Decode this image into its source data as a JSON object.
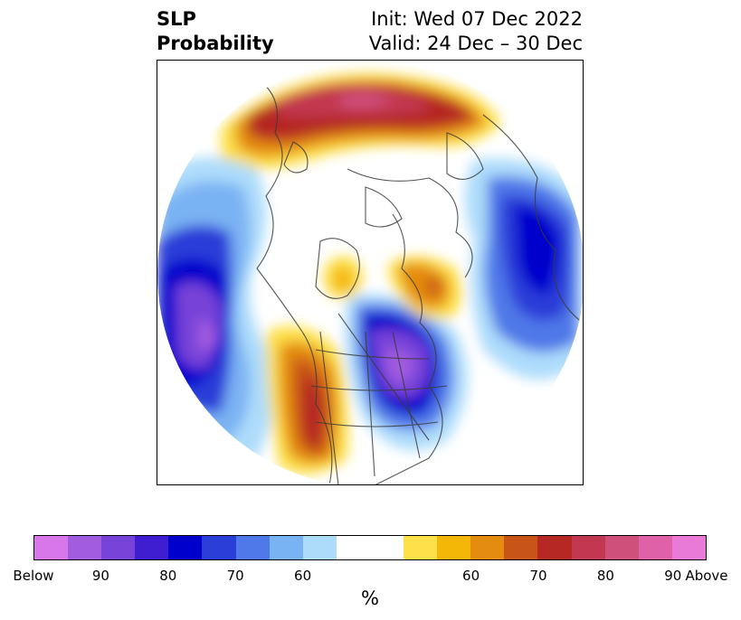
{
  "title": {
    "left_line1": "SLP",
    "left_line2": "Probability",
    "right_line1": "Init: Wed 07 Dec 2022",
    "right_line2": "Valid: 24 Dec – 30 Dec"
  },
  "colorbar": {
    "unit": "%",
    "below_colors": [
      "#d877e9",
      "#a15ce0",
      "#7743d8",
      "#3f1dd0",
      "#0000cc",
      "#2a3ed8",
      "#4f78e8",
      "#7ab3f3",
      "#addcfb"
    ],
    "neutral_color": "#ffffff",
    "above_colors": [
      "#fde04a",
      "#f4b708",
      "#e48c10",
      "#c85418",
      "#b52824",
      "#c23850",
      "#d0507c",
      "#df62a8",
      "#ea7ad8"
    ],
    "tick_labels": [
      {
        "text": "Below"
      },
      {
        "text": "90"
      },
      {
        "text": "80"
      },
      {
        "text": "70"
      },
      {
        "text": "60"
      },
      {
        "text": "60"
      },
      {
        "text": "70"
      },
      {
        "text": "80"
      },
      {
        "text": "90"
      },
      {
        "text": "Above"
      }
    ]
  }
}
